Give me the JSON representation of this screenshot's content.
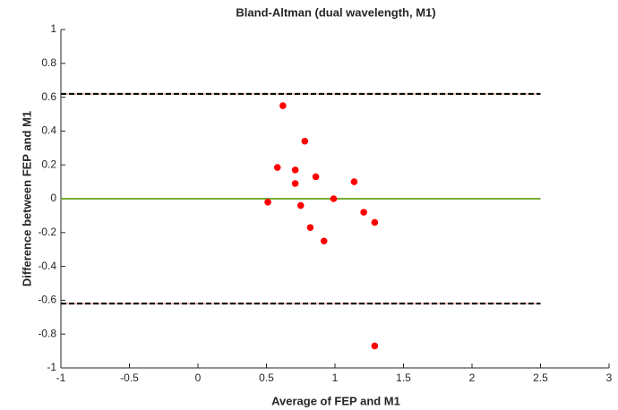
{
  "chart_data": {
    "type": "scatter",
    "title": "Bland-Altman (dual wavelength, M1)",
    "x_label": "Average of FEP and M1",
    "y_label": "Difference between FEP and M1",
    "xlim": [
      -1,
      3
    ],
    "ylim": [
      -1,
      1
    ],
    "xticks": [
      -1,
      -0.5,
      0,
      0.5,
      1,
      1.5,
      2,
      2.5,
      3
    ],
    "yticks": [
      -1,
      -0.8,
      -0.6,
      -0.4,
      -0.2,
      0,
      0.2,
      0.4,
      0.6,
      0.8,
      1
    ],
    "series": [
      {
        "color": "#ff0000",
        "x": [
          0.51,
          0.58,
          0.62,
          0.71,
          0.71,
          0.75,
          0.78,
          0.82,
          0.86,
          0.92,
          0.99,
          1.14,
          1.21,
          1.29,
          1.29
        ],
        "values": [
          -0.02,
          0.185,
          0.55,
          0.17,
          0.09,
          -0.04,
          0.34,
          -0.17,
          0.13,
          -0.25,
          0.0,
          0.1,
          -0.08,
          -0.14,
          -0.87
        ]
      }
    ],
    "reference_lines": [
      {
        "y": 0.62,
        "x": [
          -1,
          2.5
        ],
        "color": "#000000",
        "underlay_color": "#f4b8b0",
        "dashed": true
      },
      {
        "y": 0,
        "x": [
          -1,
          2.5
        ],
        "color": "#77ac30",
        "dashed": false
      },
      {
        "y": -0.62,
        "x": [
          -1,
          2.5
        ],
        "color": "#000000",
        "underlay_color": "#f4b8b0",
        "dashed": true
      }
    ]
  }
}
